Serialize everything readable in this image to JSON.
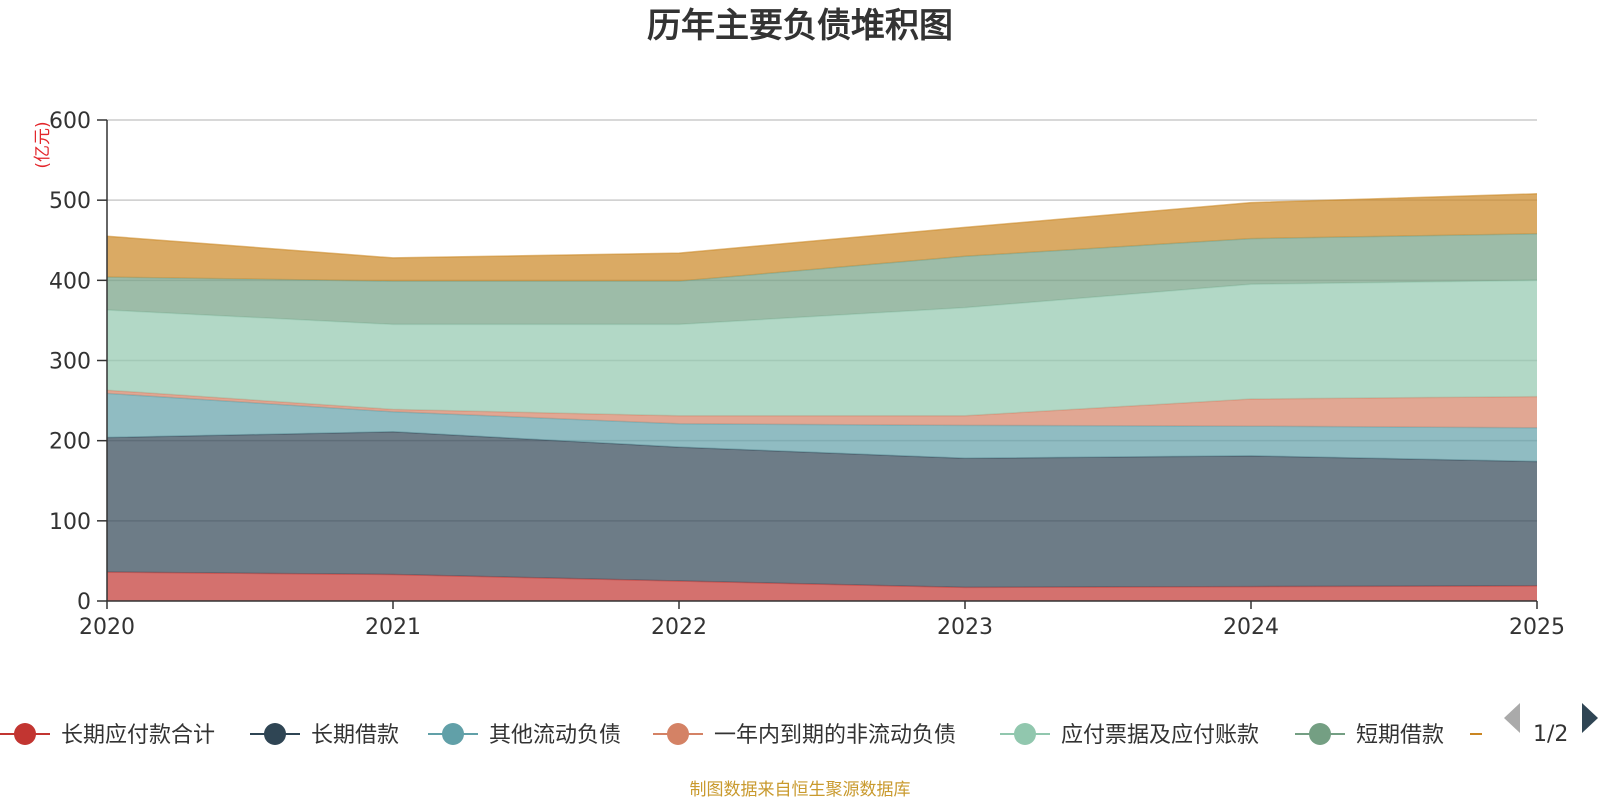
{
  "chart_data": {
    "type": "area",
    "stacked": true,
    "title": "历年主要负债堆积图",
    "unit_label": "(亿元)",
    "x": [
      "2020",
      "2021",
      "2022",
      "2023",
      "2024",
      "2025"
    ],
    "ylim": [
      0,
      600
    ],
    "yticks": [
      0,
      100,
      200,
      300,
      400,
      500,
      600
    ],
    "grid": true,
    "series": [
      {
        "name": "长期应付款合计",
        "color": "#c23531",
        "values": [
          36,
          33,
          25,
          17,
          18,
          19
        ]
      },
      {
        "name": "长期借款",
        "color": "#2f4554",
        "values": [
          168,
          178,
          167,
          161,
          163,
          155
        ]
      },
      {
        "name": "其他流动负债",
        "color": "#61a0a8",
        "values": [
          55,
          25,
          29,
          41,
          37,
          42
        ]
      },
      {
        "name": "一年内到期的非流动负债",
        "color": "#d48265",
        "values": [
          4,
          3,
          10,
          12,
          34,
          39
        ]
      },
      {
        "name": "应付票据及应付账款",
        "color": "#91c7ae",
        "values": [
          100,
          106,
          114,
          135,
          143,
          145
        ]
      },
      {
        "name": "短期借款",
        "color": "#749f83",
        "values": [
          41,
          54,
          54,
          64,
          57,
          58
        ]
      },
      {
        "name": "",
        "color": "#ca8622",
        "values": [
          51,
          29,
          35,
          36,
          45,
          50
        ]
      }
    ],
    "legend_position": "bottom",
    "pager": "1/2"
  },
  "source_text": "制图数据来自恒生聚源数据库"
}
